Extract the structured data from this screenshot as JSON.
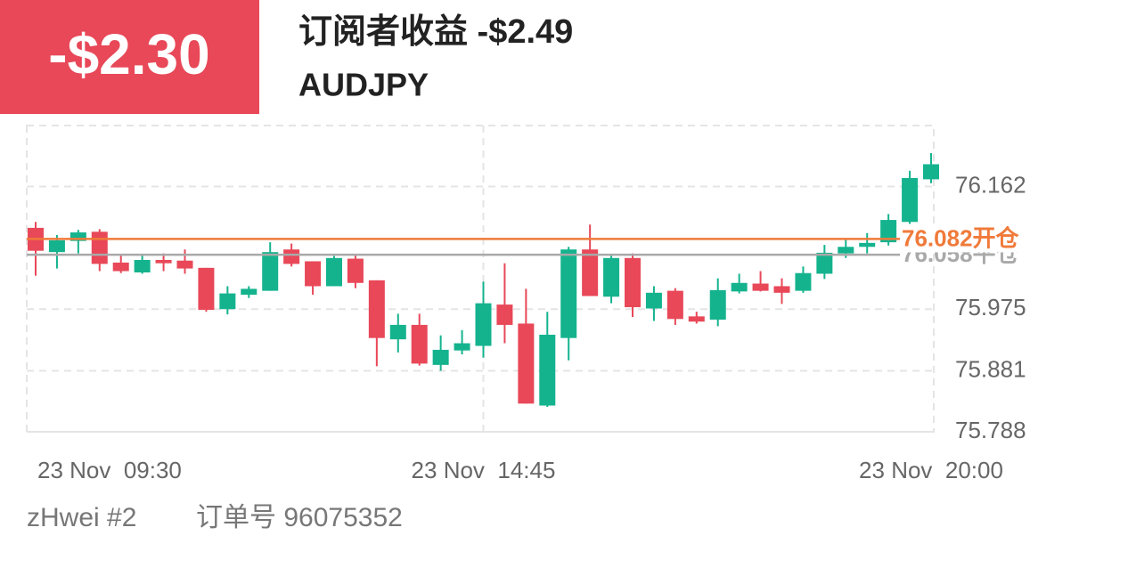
{
  "header": {
    "pnl": "-$2.30",
    "title": "订阅者收益 -$2.49",
    "symbol": "AUDJPY"
  },
  "chart_data": {
    "type": "candlestick",
    "categories": [
      "23 Nov  09:30",
      null,
      null,
      null,
      null,
      null,
      null,
      null,
      null,
      null,
      null,
      null,
      null,
      null,
      null,
      null,
      null,
      null,
      null,
      null,
      null,
      "23 Nov  14:45",
      null,
      null,
      null,
      null,
      null,
      null,
      null,
      null,
      null,
      null,
      null,
      null,
      null,
      null,
      null,
      null,
      null,
      null,
      null,
      null,
      "23 Nov  20:00"
    ],
    "open": [
      76.099,
      76.062,
      76.079,
      76.093,
      76.046,
      76.031,
      76.05,
      76.049,
      76.038,
      75.975,
      75.997,
      76.003,
      76.066,
      76.048,
      76.01,
      76.052,
      76.019,
      75.929,
      75.951,
      75.89,
      75.912,
      75.919,
      75.982,
      75.953,
      75.828,
      75.931,
      76.066,
      75.994,
      76.053,
      75.976,
      76.003,
      75.964,
      75.959,
      76.002,
      76.014,
      76.01,
      76.003,
      76.029,
      76.06,
      76.07,
      76.077,
      76.108,
      76.173
    ],
    "high": [
      76.108,
      76.088,
      76.096,
      76.097,
      76.057,
      76.057,
      76.06,
      76.066,
      76.038,
      76.01,
      76.01,
      76.077,
      76.075,
      76.048,
      76.056,
      76.057,
      76.019,
      75.968,
      75.968,
      75.935,
      75.943,
      76.017,
      76.045,
      76.006,
      75.971,
      76.07,
      76.104,
      76.057,
      76.06,
      76.01,
      76.007,
      75.971,
      76.022,
      76.029,
      76.033,
      76.022,
      76.04,
      76.073,
      76.083,
      76.091,
      76.12,
      76.186,
      76.213
    ],
    "low": [
      76.026,
      76.037,
      76.06,
      76.033,
      76.03,
      76.029,
      76.033,
      76.029,
      75.971,
      75.967,
      75.992,
      76.003,
      76.04,
      75.997,
      76.01,
      76.007,
      75.888,
      75.909,
      75.889,
      75.881,
      75.906,
      75.901,
      75.923,
      75.831,
      75.826,
      75.897,
      75.995,
      75.984,
      75.963,
      75.957,
      75.951,
      75.953,
      75.949,
      75.999,
      76.002,
      75.983,
      76.0,
      76.021,
      76.053,
      76.06,
      76.072,
      76.105,
      76.167
    ],
    "close": [
      76.064,
      76.08,
      76.092,
      76.044,
      76.033,
      76.05,
      76.045,
      76.037,
      75.974,
      75.999,
      76.006,
      76.062,
      76.044,
      76.01,
      76.053,
      76.015,
      75.931,
      75.951,
      75.892,
      75.913,
      75.923,
      75.984,
      75.951,
      75.831,
      75.936,
      76.066,
      75.995,
      76.053,
      75.978,
      76.0,
      75.96,
      75.956,
      76.004,
      76.015,
      76.003,
      76.0,
      76.03,
      76.061,
      76.07,
      76.076,
      76.111,
      76.175,
      76.196
    ],
    "up_color": "#14b38e",
    "down_color": "#e84858",
    "ylim": [
      75.788,
      76.255
    ],
    "yticks": [
      75.788,
      75.881,
      75.975,
      76.162
    ],
    "grid": true,
    "open_line": {
      "value": 76.082,
      "label": "76.082开仓",
      "color": "#f07a3a"
    },
    "close_line": {
      "value": 76.058,
      "label": "76.058平仓",
      "color": "#a9a9a9"
    }
  },
  "footer": {
    "user": "zHwei #2",
    "order": "订单号 96075352"
  }
}
